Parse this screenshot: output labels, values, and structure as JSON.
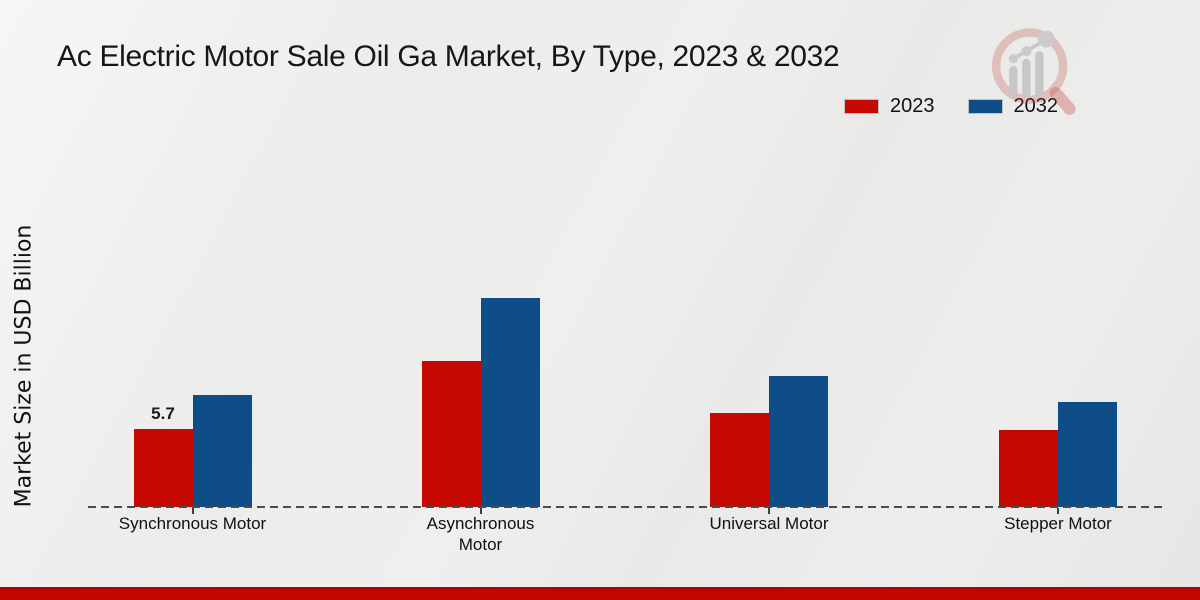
{
  "chart_data": {
    "type": "bar",
    "title": "Ac Electric Motor Sale Oil Ga Market, By Type, 2023 & 2032",
    "ylabel": "Market Size in USD Billion",
    "xlabel": "",
    "categories": [
      "Synchronous Motor",
      "Asynchronous Motor",
      "Universal Motor",
      "Stepper Motor"
    ],
    "series": [
      {
        "name": "2023",
        "color": "#c50902",
        "values": [
          5.7,
          10.7,
          6.9,
          5.6
        ],
        "data_labels": [
          "5.7",
          "",
          "",
          ""
        ]
      },
      {
        "name": "2032",
        "color": "#0f4d89",
        "values": [
          8.2,
          15.3,
          9.6,
          7.7
        ],
        "data_labels": [
          "",
          "",
          "",
          ""
        ]
      }
    ],
    "ylim": [
      0,
      16
    ],
    "grid": false,
    "legend_position": "top-right",
    "baseline_style": "dashed",
    "y_axis_ticks_visible": false
  },
  "colors": {
    "series_2023": "#c50902",
    "series_2032": "#0f4d89",
    "footer_strip": "#c20601",
    "background": "#ececeb",
    "axis_dash": "#4a4a4a",
    "text": "#161616"
  },
  "watermark": {
    "icon": "magnifier-bar-chart-logo-icon"
  }
}
